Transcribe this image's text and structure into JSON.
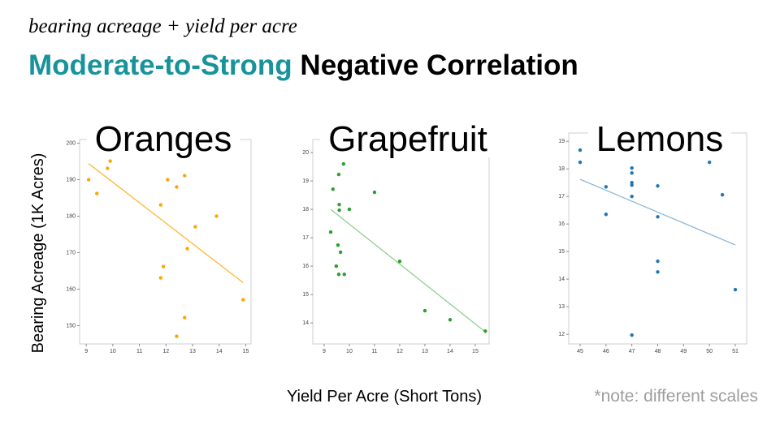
{
  "header": {
    "subtitle": "bearing acreage + yield per acre",
    "title_highlight": "Moderate-to-Strong",
    "title_rest": " Negative Correlation"
  },
  "y_label": "Bearing Acreage (1K Acres)",
  "x_label": "Yield Per Acre (Short Tons)",
  "note": "*note: different scales",
  "chart_data": [
    {
      "type": "scatter",
      "title": "Oranges",
      "color": "#ffa500",
      "trend_color": "#ffb733",
      "x": [
        9.09,
        9.4,
        9.8,
        9.9,
        10.3,
        12.06,
        12.4,
        12.7,
        11.8,
        13.1,
        13.9,
        11.9,
        11.8,
        12.8,
        12.7,
        12.4,
        14.9
      ],
      "y": [
        190,
        186.2,
        193.1,
        195.1,
        198.4,
        190,
        188,
        191.1,
        183.1,
        177.1,
        180,
        166.2,
        163.1,
        171.1,
        152.2,
        147.1,
        157.1
      ],
      "trendline": {
        "x": [
          9.09,
          14.9
        ],
        "y": [
          194.4,
          161.8
        ]
      },
      "xlim": [
        8.75,
        15.2
      ],
      "ylim": [
        145,
        201
      ],
      "xticks": [
        9,
        10,
        11,
        12,
        13,
        14,
        15
      ],
      "yticks": [
        150,
        160,
        170,
        180,
        190,
        200
      ]
    },
    {
      "type": "scatter",
      "title": "Grapefruit",
      "color": "#2ca02c",
      "trend_color": "#8fce8f",
      "x": [
        9.26,
        9.35,
        9.58,
        9.77,
        9.6,
        9.6,
        10.0,
        11.0,
        9.55,
        9.65,
        9.48,
        9.58,
        9.8,
        12.0,
        13.0,
        14.0,
        15.4
      ],
      "y": [
        17.2,
        18.71,
        19.23,
        19.6,
        18.17,
        17.97,
        18.0,
        18.6,
        16.74,
        16.49,
        16.0,
        15.71,
        15.71,
        16.17,
        14.43,
        14.11,
        13.71
      ],
      "trendline": {
        "x": [
          9.26,
          15.39
        ],
        "y": [
          18.0,
          13.69
        ]
      },
      "xlim": [
        8.55,
        15.55
      ],
      "ylim": [
        13.26,
        20.46
      ],
      "xticks": [
        9,
        10,
        11,
        12,
        13,
        14,
        15
      ],
      "yticks": [
        14,
        15,
        16,
        17,
        18,
        19,
        20
      ]
    },
    {
      "type": "scatter",
      "title": "Lemons",
      "color": "#1f77b4",
      "trend_color": "#8fb8d9",
      "x": [
        45,
        45,
        46,
        46,
        47,
        47,
        47,
        47,
        47,
        47,
        48,
        48,
        48,
        48,
        50,
        50.5,
        51
      ],
      "y": [
        18.68,
        18.24,
        17.35,
        16.35,
        18.03,
        17.85,
        17.5,
        17.41,
        17.0,
        11.97,
        17.38,
        16.26,
        14.65,
        14.26,
        18.24,
        17.06,
        13.62
      ],
      "trendline": {
        "x": [
          45,
          51
        ],
        "y": [
          17.62,
          15.24
        ]
      },
      "xlim": [
        44.56,
        51.44
      ],
      "ylim": [
        11.65,
        19.3
      ],
      "xticks": [
        45,
        46,
        47,
        48,
        49,
        50,
        51
      ],
      "yticks": [
        12,
        13,
        14,
        15,
        16,
        17,
        18,
        19
      ]
    }
  ]
}
